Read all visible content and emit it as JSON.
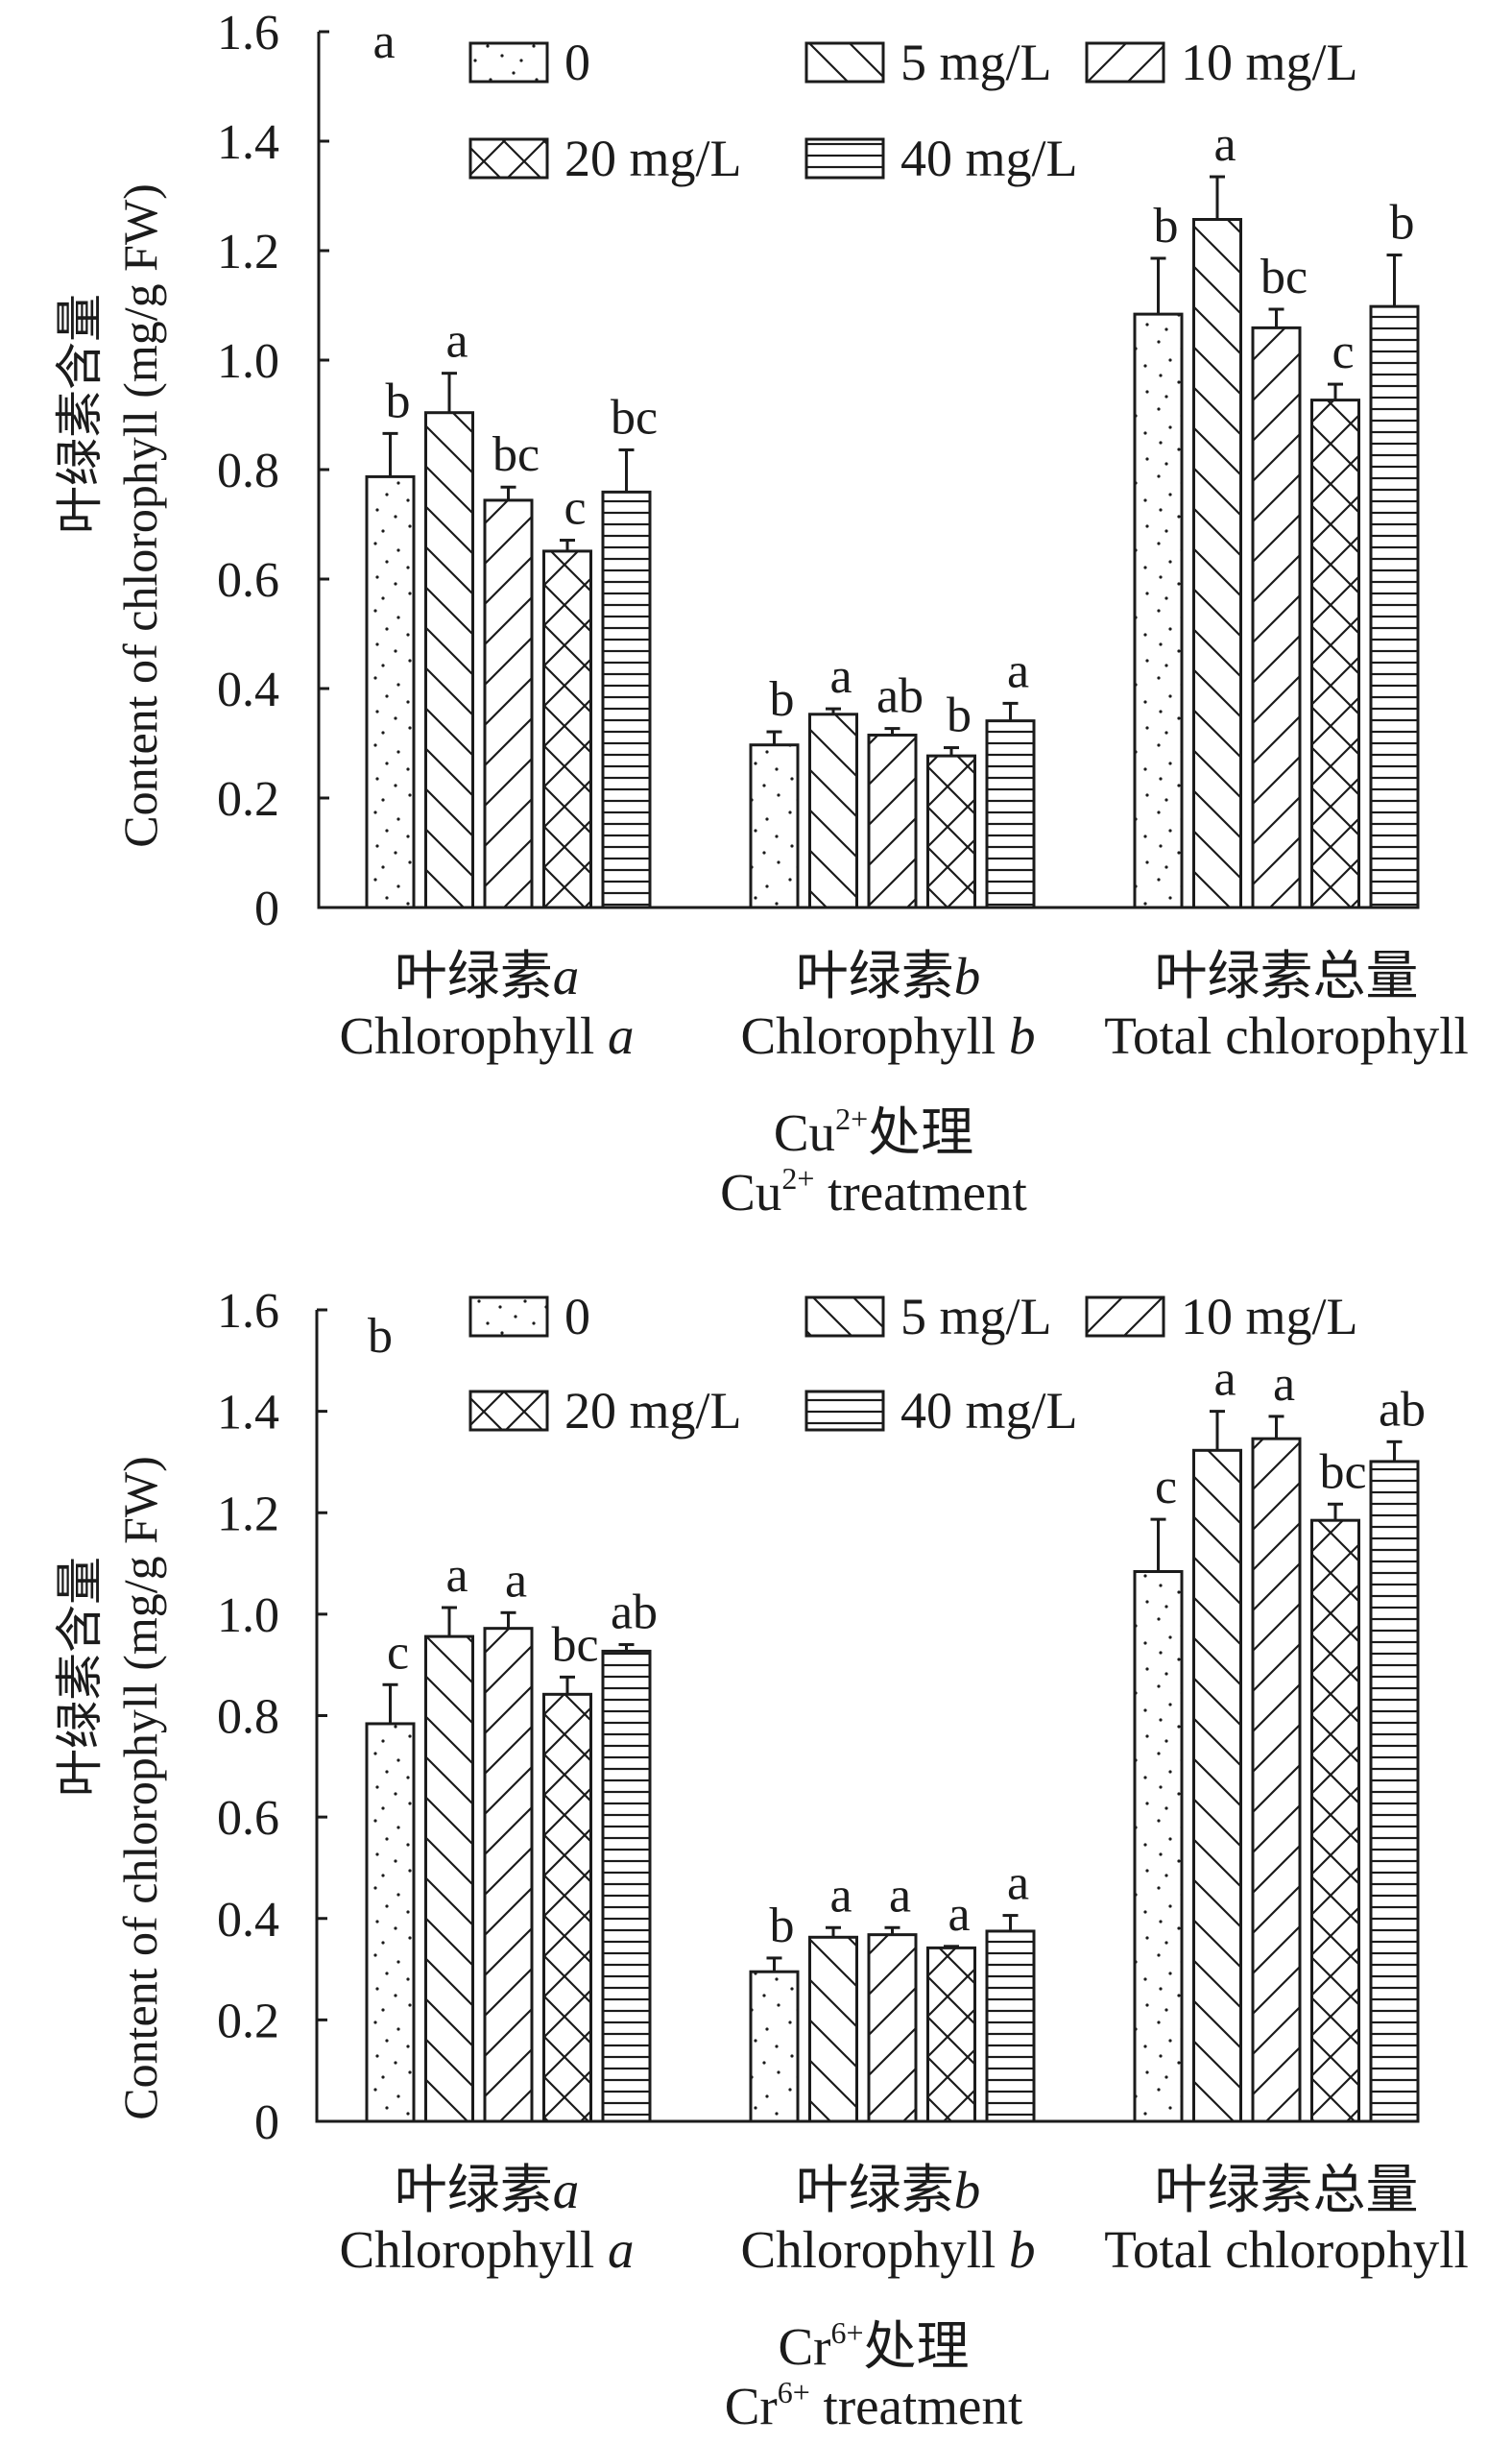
{
  "chart_data": [
    {
      "type": "bar",
      "panel_label": "a",
      "ylabel": {
        "zh": "叶绿素含量",
        "en": "Content of chlorophyll (mg/g FW)"
      },
      "xlabel": {
        "zh_ion": "Cu",
        "zh_charge": "2+",
        "zh_suffix": "处理",
        "en_ion": "Cu",
        "en_charge": "2+",
        "en_suffix": " treatment"
      },
      "ylim": [
        0,
        1.6
      ],
      "y_ticks": [
        "0",
        "0.2",
        "0.4",
        "0.6",
        "0.8",
        "1.0",
        "1.2",
        "1.4",
        "1.6"
      ],
      "grid": false,
      "legend_position": "top",
      "categories": [
        {
          "zh": "叶绿素",
          "zh_var": "a",
          "en": "Chlorophyll ",
          "en_var": "a"
        },
        {
          "zh": "叶绿素",
          "zh_var": "b",
          "en": "Chlorophyll ",
          "en_var": "b"
        },
        {
          "zh": "叶绿素总量",
          "zh_var": "",
          "en": "Total chlorophyll",
          "en_var": ""
        }
      ],
      "series": [
        {
          "name": "0",
          "pattern": "dots",
          "values": [
            0.787,
            0.297,
            1.084
          ],
          "errors": [
            0.079,
            0.024,
            0.102
          ],
          "letters": [
            "b",
            "b",
            "b"
          ]
        },
        {
          "name": "5 mg/L",
          "pattern": "back_diagonal",
          "values": [
            0.904,
            0.353,
            1.257
          ],
          "errors": [
            0.072,
            0.01,
            0.078
          ],
          "letters": [
            "a",
            "a",
            "a"
          ]
        },
        {
          "name": "10 mg/L",
          "pattern": "forward_diagonal",
          "values": [
            0.744,
            0.315,
            1.059
          ],
          "errors": [
            0.024,
            0.012,
            0.034
          ],
          "letters": [
            "bc",
            "ab",
            "bc"
          ]
        },
        {
          "name": "20 mg/L",
          "pattern": "crosshatch",
          "values": [
            0.651,
            0.277,
            0.927
          ],
          "errors": [
            0.02,
            0.015,
            0.029
          ],
          "letters": [
            "c",
            "b",
            "c"
          ]
        },
        {
          "name": "40 mg/L",
          "pattern": "horizontal",
          "values": [
            0.759,
            0.341,
            1.098
          ],
          "errors": [
            0.077,
            0.032,
            0.094
          ],
          "letters": [
            "bc",
            "a",
            "b"
          ]
        }
      ]
    },
    {
      "type": "bar",
      "panel_label": "b",
      "ylabel": {
        "zh": "叶绿素含量",
        "en": "Content of chlorophyll (mg/g FW)"
      },
      "xlabel": {
        "zh_ion": "Cr",
        "zh_charge": "6+",
        "zh_suffix": "处理",
        "en_ion": "Cr",
        "en_charge": "6+",
        "en_suffix": " treatment"
      },
      "ylim": [
        0,
        1.6
      ],
      "y_ticks": [
        "0",
        "0.2",
        "0.4",
        "0.6",
        "0.8",
        "1.0",
        "1.2",
        "1.4",
        "1.6"
      ],
      "grid": false,
      "legend_position": "top",
      "categories": [
        {
          "zh": "叶绿素",
          "zh_var": "a",
          "en": "Chlorophyll ",
          "en_var": "a"
        },
        {
          "zh": "叶绿素",
          "zh_var": "b",
          "en": "Chlorophyll ",
          "en_var": "b"
        },
        {
          "zh": "叶绿素总量",
          "zh_var": "",
          "en": "Total chlorophyll",
          "en_var": ""
        }
      ],
      "series": [
        {
          "name": "0",
          "pattern": "dots",
          "values": [
            0.784,
            0.295,
            1.084
          ],
          "errors": [
            0.077,
            0.027,
            0.103
          ],
          "letters": [
            "c",
            "b",
            "c"
          ]
        },
        {
          "name": "5 mg/L",
          "pattern": "back_diagonal",
          "values": [
            0.956,
            0.363,
            1.323
          ],
          "errors": [
            0.057,
            0.019,
            0.077
          ],
          "letters": [
            "a",
            "a",
            "a"
          ]
        },
        {
          "name": "10 mg/L",
          "pattern": "forward_diagonal",
          "values": [
            0.972,
            0.368,
            1.346
          ],
          "errors": [
            0.031,
            0.014,
            0.044
          ],
          "letters": [
            "a",
            "a",
            "a"
          ]
        },
        {
          "name": "20 mg/L",
          "pattern": "crosshatch",
          "values": [
            0.842,
            0.342,
            1.185
          ],
          "errors": [
            0.034,
            0.003,
            0.032
          ],
          "letters": [
            "bc",
            "a",
            "bc"
          ]
        },
        {
          "name": "40 mg/L",
          "pattern": "horizontal",
          "values": [
            0.927,
            0.375,
            1.301
          ],
          "errors": [
            0.013,
            0.031,
            0.039
          ],
          "letters": [
            "ab",
            "a",
            "ab"
          ]
        }
      ]
    }
  ]
}
